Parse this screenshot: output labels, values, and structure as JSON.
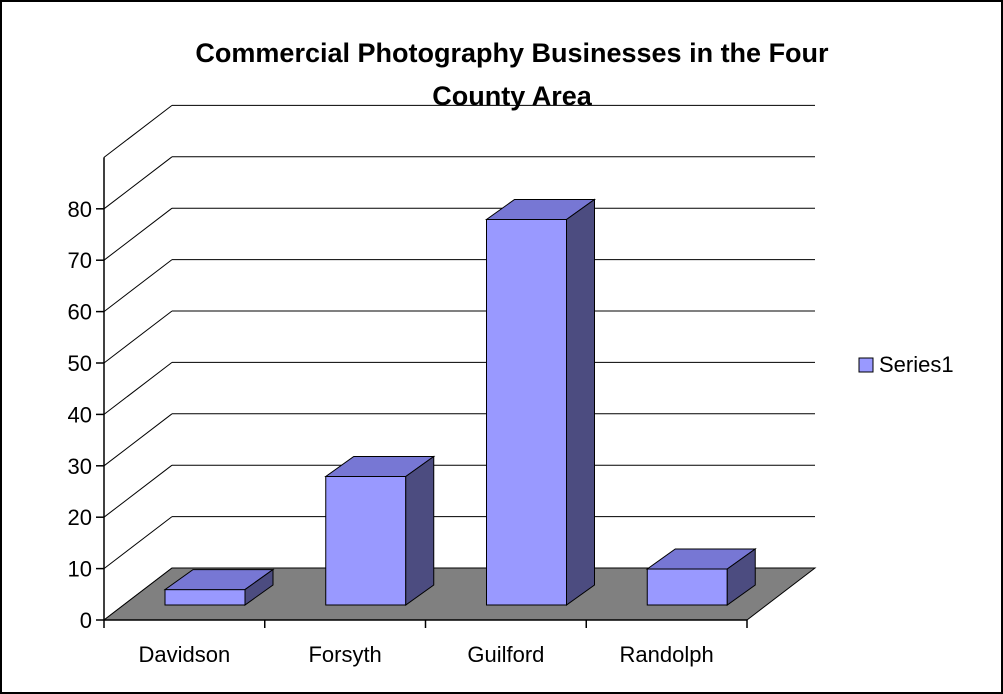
{
  "chart_data": {
    "type": "bar",
    "style": "3d-column",
    "title": "Commercial Photography Businesses in the Four County Area",
    "title_lines": [
      "Commercial Photography Businesses in the Four",
      "County Area"
    ],
    "categories": [
      "Davidson",
      "Forsyth",
      "Guilford",
      "Randolph"
    ],
    "series": [
      {
        "name": "Series1",
        "values": [
          3,
          25,
          75,
          7
        ]
      }
    ],
    "ylim": [
      0,
      80
    ],
    "yticks": [
      "0",
      "10",
      "20",
      "30",
      "40",
      "50",
      "60",
      "70",
      "80"
    ],
    "grid": true,
    "legend_position": "right",
    "colors": {
      "bar_front": "#9999FF",
      "bar_top": "#7777D4",
      "bar_side": "#4C4C80",
      "floor": "#808080",
      "gridline": "#000000",
      "frame": "#000000"
    }
  }
}
